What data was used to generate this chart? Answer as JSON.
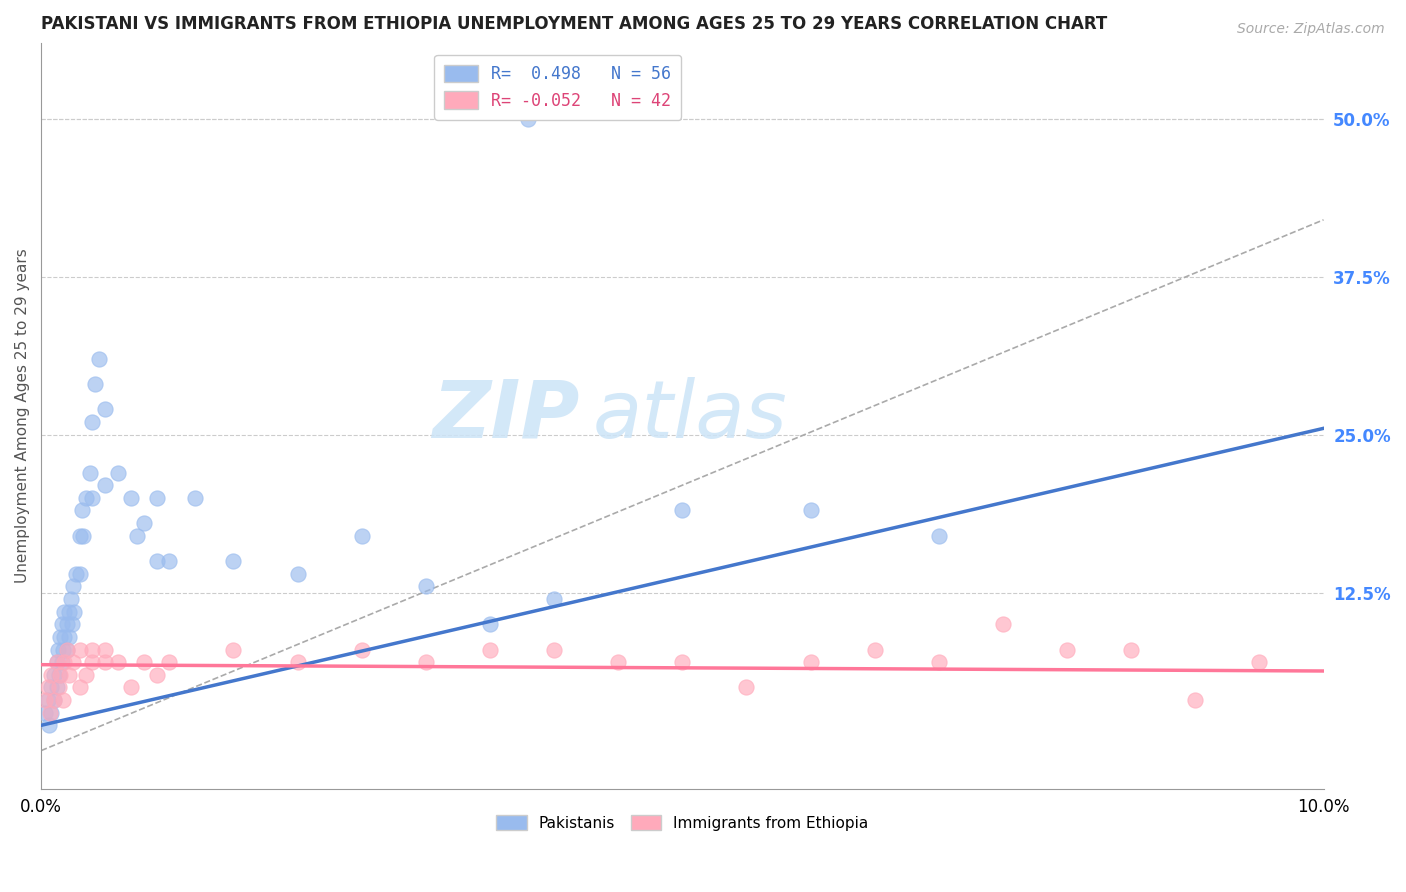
{
  "title": "PAKISTANI VS IMMIGRANTS FROM ETHIOPIA UNEMPLOYMENT AMONG AGES 25 TO 29 YEARS CORRELATION CHART",
  "source": "Source: ZipAtlas.com",
  "ylabel": "Unemployment Among Ages 25 to 29 years",
  "ylabel_right_ticks": [
    "50.0%",
    "37.5%",
    "25.0%",
    "12.5%"
  ],
  "ylabel_right_vals": [
    0.5,
    0.375,
    0.25,
    0.125
  ],
  "x_min": 0.0,
  "x_max": 0.1,
  "y_min": -0.03,
  "y_max": 0.56,
  "legend_line1": "R=  0.498  N = 56",
  "legend_line2": "R= -0.052  N = 42",
  "blue_scatter_x": [
    0.0003,
    0.0005,
    0.0006,
    0.0008,
    0.0008,
    0.001,
    0.001,
    0.0012,
    0.0012,
    0.0013,
    0.0014,
    0.0015,
    0.0016,
    0.0016,
    0.0017,
    0.0018,
    0.0018,
    0.002,
    0.002,
    0.0022,
    0.0022,
    0.0023,
    0.0024,
    0.0025,
    0.0026,
    0.0027,
    0.003,
    0.003,
    0.0032,
    0.0033,
    0.0035,
    0.0038,
    0.004,
    0.004,
    0.0042,
    0.0045,
    0.005,
    0.005,
    0.006,
    0.007,
    0.0075,
    0.008,
    0.009,
    0.009,
    0.01,
    0.012,
    0.015,
    0.02,
    0.025,
    0.03,
    0.035,
    0.04,
    0.05,
    0.06,
    0.07,
    0.038
  ],
  "blue_scatter_y": [
    0.03,
    0.04,
    0.02,
    0.05,
    0.03,
    0.06,
    0.04,
    0.07,
    0.05,
    0.08,
    0.06,
    0.09,
    0.07,
    0.1,
    0.08,
    0.11,
    0.09,
    0.1,
    0.08,
    0.11,
    0.09,
    0.12,
    0.1,
    0.13,
    0.11,
    0.14,
    0.17,
    0.14,
    0.19,
    0.17,
    0.2,
    0.22,
    0.2,
    0.26,
    0.29,
    0.31,
    0.21,
    0.27,
    0.22,
    0.2,
    0.17,
    0.18,
    0.15,
    0.2,
    0.15,
    0.2,
    0.15,
    0.14,
    0.17,
    0.13,
    0.1,
    0.12,
    0.19,
    0.19,
    0.17,
    0.5
  ],
  "pink_scatter_x": [
    0.0003,
    0.0005,
    0.0007,
    0.0008,
    0.001,
    0.0012,
    0.0014,
    0.0015,
    0.0017,
    0.0018,
    0.002,
    0.0022,
    0.0025,
    0.003,
    0.003,
    0.0035,
    0.004,
    0.004,
    0.005,
    0.005,
    0.006,
    0.007,
    0.008,
    0.009,
    0.01,
    0.015,
    0.02,
    0.025,
    0.03,
    0.035,
    0.04,
    0.045,
    0.05,
    0.055,
    0.06,
    0.065,
    0.07,
    0.075,
    0.08,
    0.085,
    0.09,
    0.095
  ],
  "pink_scatter_y": [
    0.04,
    0.05,
    0.03,
    0.06,
    0.04,
    0.07,
    0.05,
    0.06,
    0.04,
    0.07,
    0.08,
    0.06,
    0.07,
    0.08,
    0.05,
    0.06,
    0.07,
    0.08,
    0.07,
    0.08,
    0.07,
    0.05,
    0.07,
    0.06,
    0.07,
    0.08,
    0.07,
    0.08,
    0.07,
    0.08,
    0.08,
    0.07,
    0.07,
    0.05,
    0.07,
    0.08,
    0.07,
    0.1,
    0.08,
    0.08,
    0.04,
    0.07
  ],
  "blue_line_x": [
    0.0,
    0.1
  ],
  "blue_line_y": [
    0.02,
    0.255
  ],
  "pink_line_x": [
    0.0,
    0.1
  ],
  "pink_line_y": [
    0.068,
    0.063
  ],
  "dash_line_x": [
    0.0,
    0.1
  ],
  "dash_line_y": [
    0.0,
    0.42
  ],
  "watermark_zip": "ZIP",
  "watermark_atlas": "atlas",
  "bg_color": "#ffffff",
  "grid_color": "#cccccc",
  "blue_color": "#99bbee",
  "pink_color": "#ffaabb",
  "blue_line_color": "#4477cc",
  "pink_line_color": "#ff7799",
  "dash_line_color": "#aaaaaa",
  "title_color": "#222222",
  "right_axis_color": "#4488ff",
  "watermark_color": "#cce4f7"
}
